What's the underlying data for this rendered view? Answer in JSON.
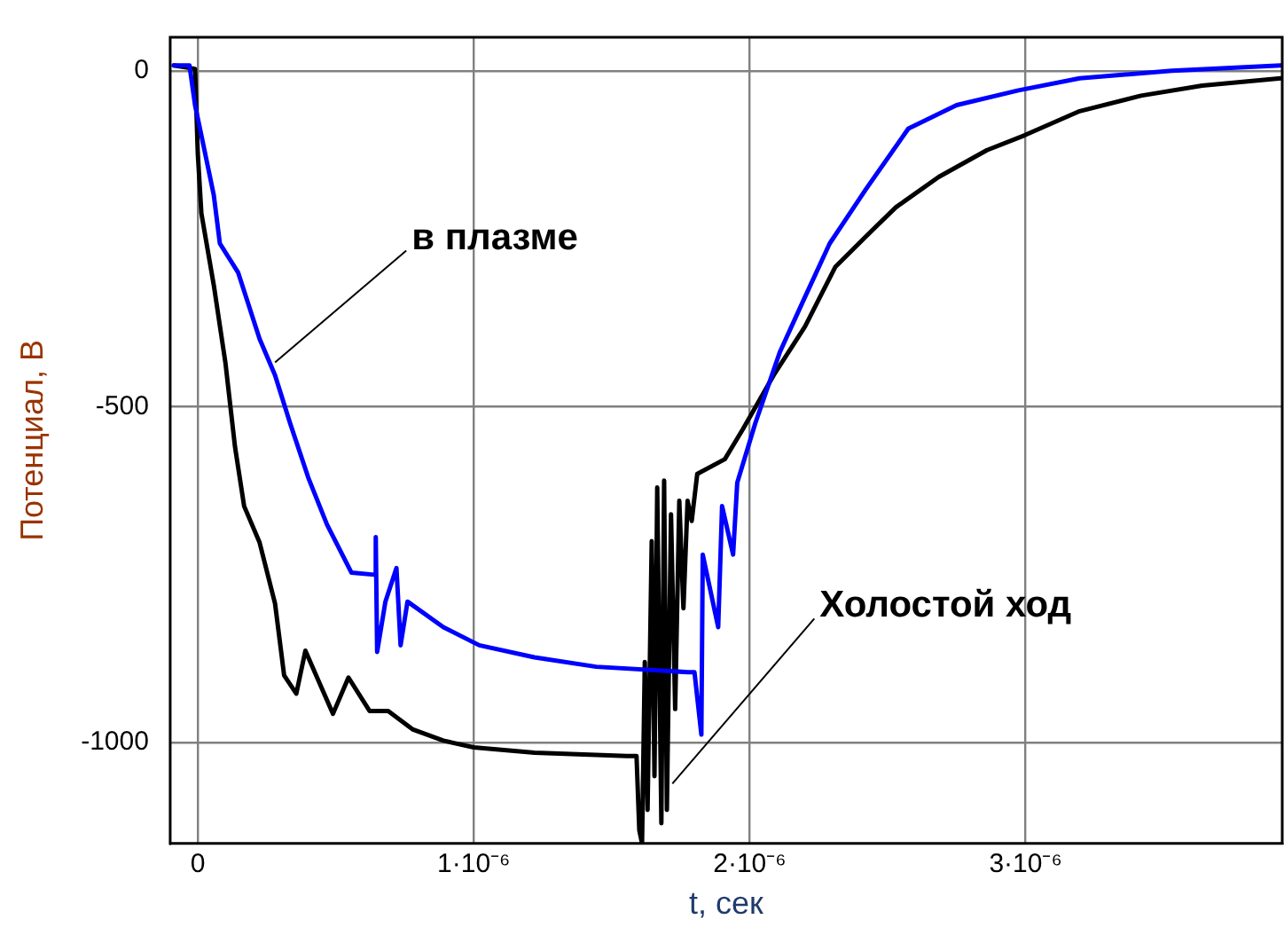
{
  "chart_data": {
    "type": "line",
    "xlabel": "t, сек",
    "ylabel": "Потенциал, В",
    "xlim": [
      -1e-07,
      3.93e-06
    ],
    "ylim": [
      -1150,
      50
    ],
    "xticks": [
      0,
      {
        "value": 1e-06,
        "label": "1·10⁻⁶"
      },
      {
        "value": 2e-06,
        "label": "2·10⁻⁶"
      },
      {
        "value": 3e-06,
        "label": "3·10⁻⁶"
      }
    ],
    "yticks": [
      0,
      -500,
      -1000
    ],
    "grid": true,
    "legend": false,
    "marker": "none",
    "line_style": "solid",
    "annotations": [
      {
        "text": "в плазме",
        "x": 2.8e-07,
        "y": -434
      },
      {
        "text": "Холостой ход",
        "x": 1.72e-06,
        "y": -1061
      }
    ],
    "series": [
      {
        "color": "#0000ff",
        "x": [
          -8.7e-08,
          -3e-08,
          -1e-08,
          1.3e-08,
          5.8e-08,
          8e-08,
          1.46e-07,
          2.24e-07,
          2.8e-07,
          3.35e-07,
          4e-07,
          4.68e-07,
          5.57e-07,
          6.4e-07,
          6.45e-07,
          6.5e-07,
          6.8e-07,
          7.2e-07,
          7.35e-07,
          7.6e-07,
          8.9e-07,
          1.02e-06,
          1.22e-06,
          1.444e-06,
          1.776e-06,
          1.8e-06,
          1.825e-06,
          1.83e-06,
          1.886e-06,
          1.9e-06,
          1.94e-06,
          1.955e-06,
          2.02e-06,
          2.11e-06,
          2.2e-06,
          2.29e-06,
          2.42e-06,
          2.575e-06,
          2.75e-06,
          2.974e-06,
          3.196e-06,
          3.53e-06,
          3.925e-06
        ],
        "values": [
          8,
          8,
          -51,
          -96,
          -185,
          -257,
          -300,
          -399,
          -453,
          -525,
          -605,
          -675,
          -747,
          -750,
          -694,
          -865,
          -790,
          -740,
          -855,
          -790,
          -828,
          -855,
          -873,
          -887,
          -895,
          -895,
          -988,
          -720,
          -828,
          -648,
          -720,
          -613,
          -525,
          -418,
          -337,
          -257,
          -177,
          -86,
          -51,
          -29,
          -11,
          0,
          8
        ]
      },
      {
        "color": "#000000",
        "x": [
          -8.7e-08,
          -1e-08,
          0,
          1.3e-08,
          5.8e-08,
          1e-07,
          1.35e-07,
          1.68e-07,
          2.24e-07,
          2.8e-07,
          3.13e-07,
          3.57e-07,
          3.9e-07,
          4.46e-07,
          4.9e-07,
          5.46e-07,
          6.23e-07,
          6.9e-07,
          7.78e-07,
          8.9e-07,
          1e-06,
          1.22e-06,
          1.555e-06,
          1.59e-06,
          1.6e-06,
          1.61e-06,
          1.62e-06,
          1.63e-06,
          1.645e-06,
          1.655e-06,
          1.665e-06,
          1.68e-06,
          1.69e-06,
          1.7e-06,
          1.715e-06,
          1.73e-06,
          1.745e-06,
          1.76e-06,
          1.775e-06,
          1.79e-06,
          1.81e-06,
          1.91e-06,
          1.976e-06,
          2.087e-06,
          2.2e-06,
          2.31e-06,
          2.42e-06,
          2.53e-06,
          2.685e-06,
          2.86e-06,
          2.996e-06,
          3.196e-06,
          3.418e-06,
          3.64e-06,
          3.925e-06
        ],
        "values": [
          8,
          3,
          -123,
          -212,
          -319,
          -434,
          -560,
          -648,
          -702,
          -793,
          -900,
          -927,
          -863,
          -916,
          -957,
          -903,
          -953,
          -953,
          -980,
          -997,
          -1007,
          -1015,
          -1020,
          -1020,
          -1130,
          -1150,
          -880,
          -1100,
          -700,
          -1050,
          -620,
          -1120,
          -610,
          -1100,
          -660,
          -950,
          -640,
          -800,
          -640,
          -670,
          -600,
          -578,
          -533,
          -453,
          -381,
          -292,
          -247,
          -203,
          -158,
          -118,
          -96,
          -60,
          -37,
          -22,
          -11
        ]
      }
    ]
  }
}
